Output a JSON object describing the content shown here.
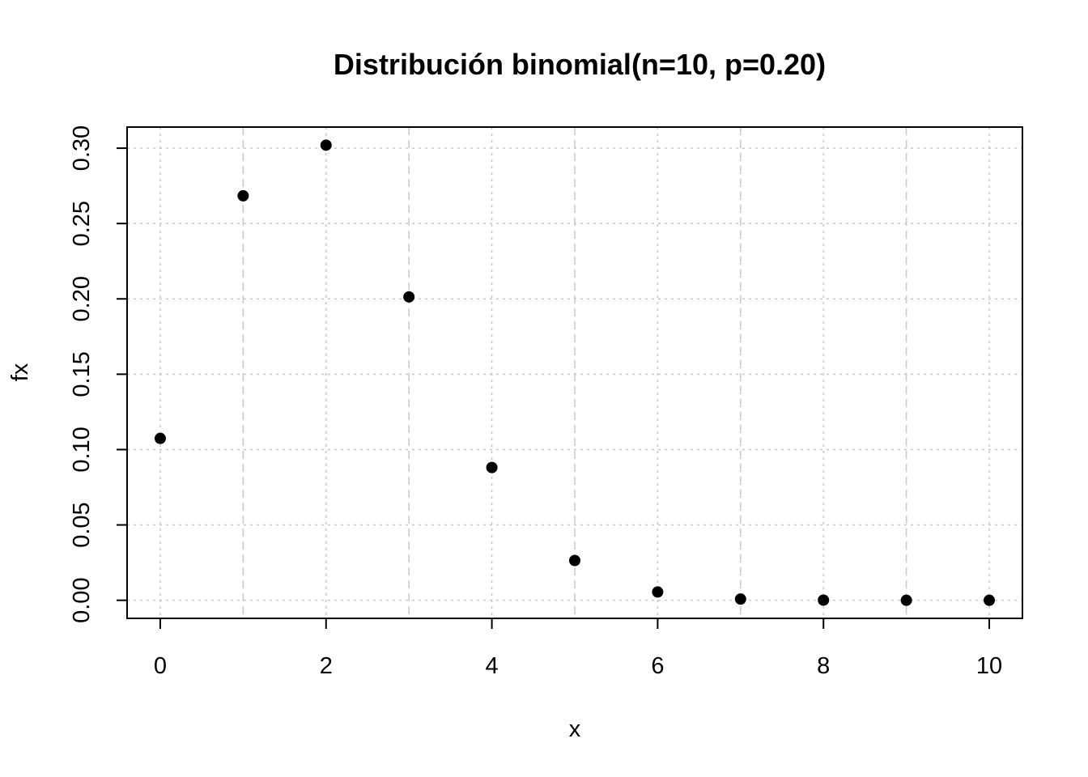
{
  "chart_data": {
    "type": "scatter",
    "title": "Distribución binomial(n=10, p=0.20)",
    "xlabel": "x",
    "ylabel": "fx",
    "x": [
      0,
      1,
      2,
      3,
      4,
      5,
      6,
      7,
      8,
      9,
      10
    ],
    "y": [
      0.1074,
      0.2684,
      0.302,
      0.2013,
      0.0881,
      0.0264,
      0.0055,
      0.0008,
      0.0001,
      0.0,
      0.0
    ],
    "xlim": [
      -0.4,
      10.4
    ],
    "ylim": [
      -0.012,
      0.314
    ],
    "xticks": [
      0,
      2,
      4,
      6,
      8,
      10
    ],
    "xtick_labels": [
      "0",
      "2",
      "4",
      "6",
      "8",
      "10"
    ],
    "yticks": [
      0.0,
      0.05,
      0.1,
      0.15,
      0.2,
      0.25,
      0.3
    ],
    "ytick_labels": [
      "0.00",
      "0.05",
      "0.10",
      "0.15",
      "0.20",
      "0.25",
      "0.30"
    ],
    "vertical_grid_x": [
      0,
      1,
      2,
      3,
      4,
      5,
      6,
      7,
      8,
      9,
      10
    ],
    "grid": true,
    "marker_color": "#000000",
    "grid_color": "#c8c8c8"
  }
}
